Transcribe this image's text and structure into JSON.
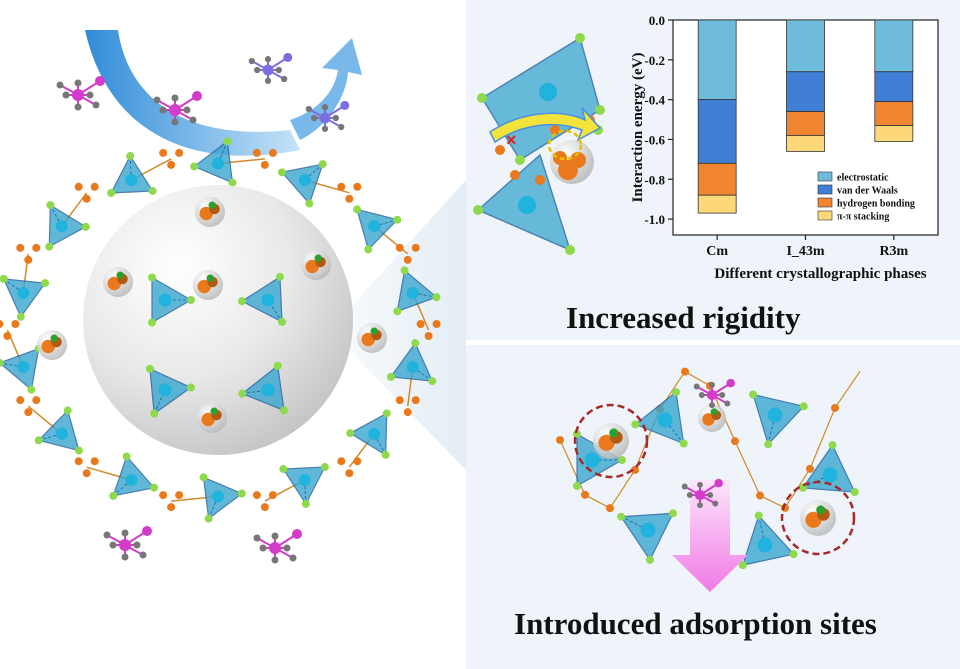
{
  "headlines": {
    "rigidity": "Increased rigidity",
    "adsorption": "Introduced adsorption sites"
  },
  "colors": {
    "panel_bg": "#eef4f9",
    "tetra": "#3aa6cf",
    "metal": "#1fb3dd",
    "linker": "#e9791c",
    "anion": "#8fd94c",
    "cation_n": "#7b6fe0",
    "cation_p": "#d23cc9",
    "atom_gray": "#777777",
    "pore": "#d9d9d9",
    "arrow_blue": "#2f8fd8",
    "arrow_pink": "#f07ae6",
    "dash_ring": "#a52a2a",
    "cross": "#e02020"
  },
  "chart_data": {
    "type": "bar",
    "stacked": true,
    "categories": [
      "Cm",
      "I_43m",
      "R3m"
    ],
    "series": [
      {
        "name": "electrostatic",
        "color": "#6fbbdb",
        "values": [
          -0.4,
          -0.26,
          -0.26
        ]
      },
      {
        "name": "van der Waals",
        "color": "#3f80d6",
        "values": [
          -0.32,
          -0.2,
          -0.15
        ]
      },
      {
        "name": "hydrogen bonding",
        "color": "#f08532",
        "values": [
          -0.16,
          -0.12,
          -0.12
        ]
      },
      {
        "name": "π-π stacking",
        "color": "#fcd878",
        "values": [
          -0.09,
          -0.08,
          -0.08
        ]
      }
    ],
    "xlabel": "Different crystallographic phases",
    "ylabel": "Interaction energy (eV)",
    "ylim": [
      -1.08,
      0.0
    ],
    "yticks": [
      0.0,
      -0.2,
      -0.4,
      -0.6,
      -0.8,
      -1.0
    ],
    "ytick_labels": [
      "0.0",
      "-0.2",
      "-0.4",
      "-0.6",
      "-0.8",
      "-1.0"
    ],
    "legend_position": "bottom-right",
    "grid": false
  }
}
